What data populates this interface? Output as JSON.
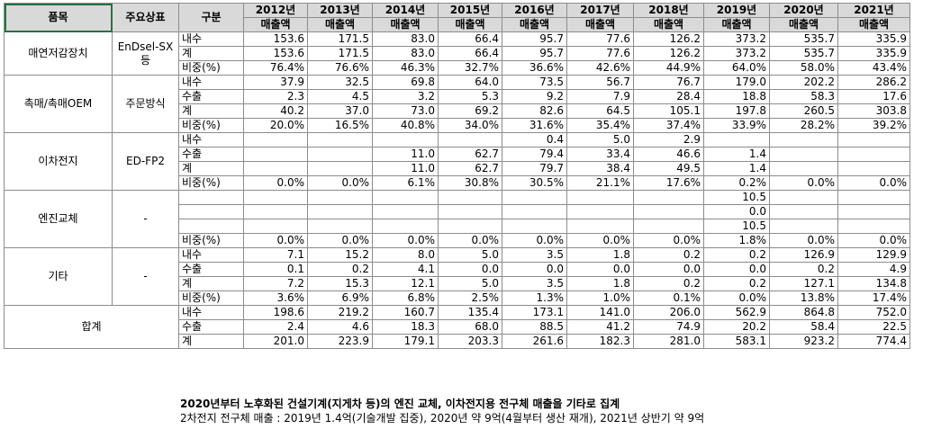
{
  "header": {
    "product": "품목",
    "brand": "주요상표",
    "category": "구분",
    "years": [
      "2012년",
      "2013년",
      "2014년",
      "2015년",
      "2016년",
      "2017년",
      "2018년",
      "2019년",
      "2020년",
      "2021년"
    ],
    "sales": "매출액"
  },
  "groups": [
    {
      "product": "매연저감장치",
      "brand": "EnDsel-SX\n등",
      "rows": [
        {
          "label": "내수",
          "values": [
            "153.6",
            "171.5",
            "83.0",
            "66.4",
            "95.7",
            "77.6",
            "126.2",
            "373.2",
            "535.7",
            "335.9"
          ]
        },
        {
          "label": "계",
          "values": [
            "153.6",
            "171.5",
            "83.0",
            "66.4",
            "95.7",
            "77.6",
            "126.2",
            "373.2",
            "535.7",
            "335.9"
          ]
        },
        {
          "label": "비중(%)",
          "values": [
            "76.4%",
            "76.6%",
            "46.3%",
            "32.7%",
            "36.6%",
            "42.6%",
            "44.9%",
            "64.0%",
            "58.0%",
            "43.4%"
          ]
        }
      ]
    },
    {
      "product": "촉매/촉매OEM",
      "brand": "주문방식",
      "rows": [
        {
          "label": "내수",
          "values": [
            "37.9",
            "32.5",
            "69.8",
            "64.0",
            "73.5",
            "56.7",
            "76.7",
            "179.0",
            "202.2",
            "286.2"
          ]
        },
        {
          "label": "수출",
          "values": [
            "2.3",
            "4.5",
            "3.2",
            "5.3",
            "9.2",
            "7.9",
            "28.4",
            "18.8",
            "58.3",
            "17.6"
          ]
        },
        {
          "label": "계",
          "values": [
            "40.2",
            "37.0",
            "73.0",
            "69.2",
            "82.6",
            "64.5",
            "105.1",
            "197.8",
            "260.5",
            "303.8"
          ]
        },
        {
          "label": "비중(%)",
          "values": [
            "20.0%",
            "16.5%",
            "40.8%",
            "34.0%",
            "31.6%",
            "35.4%",
            "37.4%",
            "33.9%",
            "28.2%",
            "39.2%"
          ]
        }
      ]
    },
    {
      "product": "이차전지",
      "brand": "ED-FP2",
      "rows": [
        {
          "label": "내수",
          "values": [
            "",
            "",
            "",
            "",
            "0.4",
            "5.0",
            "2.9",
            "",
            "",
            ""
          ]
        },
        {
          "label": "수출",
          "values": [
            "",
            "",
            "11.0",
            "62.7",
            "79.4",
            "33.4",
            "46.6",
            "1.4",
            "",
            ""
          ]
        },
        {
          "label": "계",
          "values": [
            "",
            "",
            "11.0",
            "62.7",
            "79.7",
            "38.4",
            "49.5",
            "1.4",
            "",
            ""
          ]
        },
        {
          "label": "비중(%)",
          "values": [
            "0.0%",
            "0.0%",
            "6.1%",
            "30.8%",
            "30.5%",
            "21.1%",
            "17.6%",
            "0.2%",
            "0.0%",
            "0.0%"
          ]
        }
      ]
    },
    {
      "product": "엔진교체",
      "brand": "-",
      "rows": [
        {
          "label": "",
          "values": [
            "",
            "",
            "",
            "",
            "",
            "",
            "",
            "10.5",
            "",
            ""
          ]
        },
        {
          "label": "",
          "values": [
            "",
            "",
            "",
            "",
            "",
            "",
            "",
            "0.0",
            "",
            ""
          ]
        },
        {
          "label": "",
          "values": [
            "",
            "",
            "",
            "",
            "",
            "",
            "",
            "10.5",
            "",
            ""
          ]
        },
        {
          "label": "비중(%)",
          "values": [
            "0.0%",
            "0.0%",
            "0.0%",
            "0.0%",
            "0.0%",
            "0.0%",
            "0.0%",
            "1.8%",
            "0.0%",
            "0.0%"
          ]
        }
      ]
    },
    {
      "product": "기타",
      "brand": "-",
      "rows": [
        {
          "label": "내수",
          "values": [
            "7.1",
            "15.2",
            "8.0",
            "5.0",
            "3.5",
            "1.8",
            "0.2",
            "0.2",
            "126.9",
            "129.9"
          ]
        },
        {
          "label": "수출",
          "values": [
            "0.1",
            "0.2",
            "4.1",
            "0.0",
            "0.0",
            "0.0",
            "0.0",
            "0.0",
            "0.2",
            "4.9"
          ]
        },
        {
          "label": "계",
          "values": [
            "7.2",
            "15.3",
            "12.1",
            "5.0",
            "3.5",
            "1.8",
            "0.2",
            "0.2",
            "127.1",
            "134.8"
          ]
        },
        {
          "label": "비중(%)",
          "values": [
            "3.6%",
            "6.9%",
            "6.8%",
            "2.5%",
            "1.3%",
            "1.0%",
            "0.1%",
            "0.0%",
            "13.8%",
            "17.4%"
          ]
        }
      ]
    },
    {
      "product": "합계",
      "brand": "",
      "rows": [
        {
          "label": "내수",
          "values": [
            "198.6",
            "219.2",
            "160.7",
            "135.4",
            "173.1",
            "141.0",
            "206.0",
            "562.9",
            "864.8",
            "752.0"
          ]
        },
        {
          "label": "수출",
          "values": [
            "2.4",
            "4.6",
            "18.3",
            "68.0",
            "88.5",
            "41.2",
            "74.9",
            "20.2",
            "58.4",
            "22.5"
          ]
        },
        {
          "label": "계",
          "values": [
            "201.0",
            "223.9",
            "179.1",
            "203.3",
            "261.6",
            "182.3",
            "281.0",
            "583.1",
            "923.2",
            "774.4"
          ]
        }
      ]
    }
  ],
  "notes": {
    "line1": "2020년부터 노후화된 건설기계(지게차 등)의 엔진 교체, 이차전지용 전구체 매출을 기타로 집계",
    "line2": "2차전지 전구체 매출 : 2019년 1.4억(기술개발 집중),  2020년 약 9억(4월부터 생산 재개), 2021년 상반기 약 9억"
  }
}
